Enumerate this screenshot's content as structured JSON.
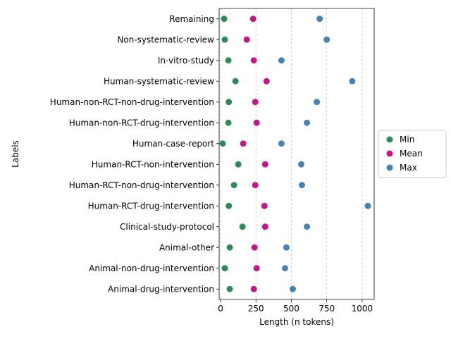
{
  "chart_data": {
    "type": "scatter",
    "orientation": "horizontal",
    "xlabel": "Length (n tokens)",
    "ylabel": "Labels",
    "xlim": [
      -10,
      1085
    ],
    "xticks": [
      0,
      250,
      500,
      750,
      1000
    ],
    "xtick_labels": [
      "0",
      "250",
      "500",
      "750",
      "1000"
    ],
    "grid": "vertical dashed",
    "legend_position": "center-right",
    "categories": [
      "Remaining",
      "Non-systematic-review",
      "In-vitro-study",
      "Human-systematic-review",
      "Human-non-RCT-non-drug-intervention",
      "Human-non-RCT-drug-intervention",
      "Human-case-report",
      "Human-RCT-non-intervention",
      "Human-RCT-non-drug-intervention",
      "Human-RCT-drug-intervention",
      "Clinical-study-protocol",
      "Animal-other",
      "Animal-non-drug-intervention",
      "Animal-drug-intervention"
    ],
    "series": [
      {
        "name": "Min",
        "color": "#2e8b57",
        "values": [
          25,
          30,
          55,
          105,
          58,
          55,
          15,
          125,
          95,
          58,
          155,
          65,
          30,
          65
        ]
      },
      {
        "name": "Mean",
        "color": "#c71585",
        "values": [
          230,
          185,
          235,
          325,
          245,
          255,
          160,
          315,
          245,
          310,
          315,
          240,
          255,
          235
        ]
      },
      {
        "name": "Max",
        "color": "#4682b4",
        "values": [
          700,
          750,
          430,
          930,
          680,
          610,
          430,
          570,
          575,
          1040,
          610,
          465,
          455,
          510
        ]
      }
    ]
  }
}
